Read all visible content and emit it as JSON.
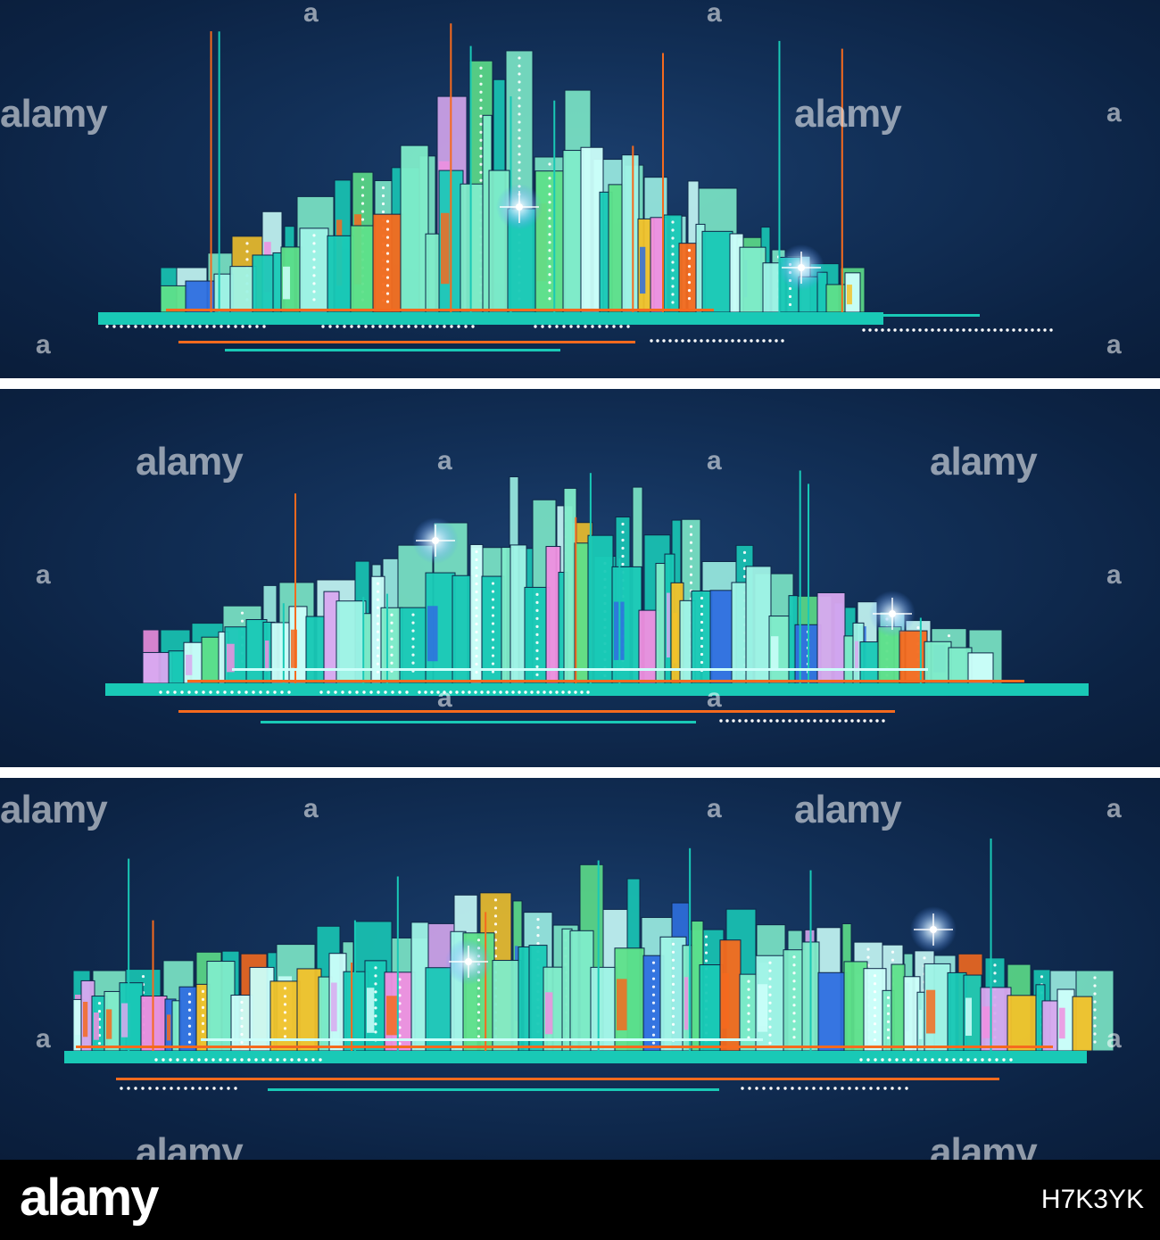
{
  "watermark": {
    "word": "alamy",
    "letter": "a"
  },
  "footer": {
    "brand": "alamy",
    "image_id": "H7K3YK"
  },
  "colors": {
    "background": "#0d2648",
    "teal": "#19c9b6",
    "mint": "#7fecc9",
    "green": "#5ee08a",
    "pale": "#ccfffa",
    "aqua": "#9ff3e6",
    "orange": "#f56a1e",
    "yellow": "#f2c22a",
    "pink": "#f08fe0",
    "blue": "#2f6fe0",
    "lilac": "#d9a9f0"
  },
  "panels": [
    {
      "name": "skyline-small",
      "seed": 11
    },
    {
      "name": "skyline-medium",
      "seed": 47
    },
    {
      "name": "skyline-wide",
      "seed": 93
    }
  ]
}
